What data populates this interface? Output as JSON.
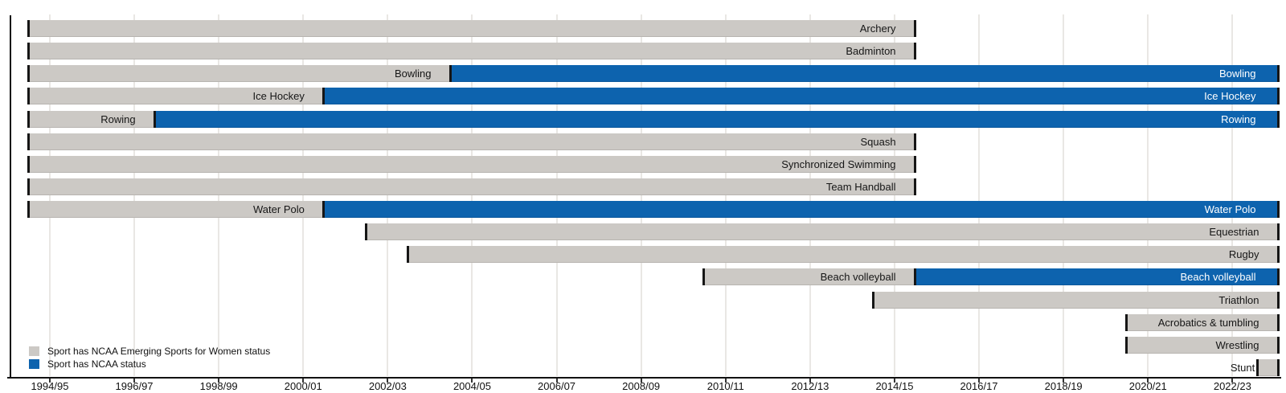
{
  "chart_data": {
    "type": "timeline",
    "description": "Timeline of NCAA Emerging Sports for Women and NCAA championship status by sport, 1994/95 to 2022/23",
    "x_axis": {
      "tick_labels": [
        "1994/95",
        "1996/97",
        "1998/99",
        "2000/01",
        "2002/03",
        "2004/05",
        "2006/07",
        "2008/09",
        "2010/11",
        "2012/13",
        "2014/15",
        "2016/17",
        "2018/19",
        "2020/21",
        "2022/23"
      ],
      "range_start_year": 1994.0,
      "range_end_year": 2023.6,
      "grid": true
    },
    "colors": {
      "emerging": "#ccc9c5",
      "ncaa": "#0d63ae",
      "cap": "#161616",
      "gridline": "#e9e7e4",
      "axis": "#121212",
      "label_dark": "#161616",
      "label_light": "#ffffff"
    },
    "legend": {
      "items": [
        {
          "key": "emerging",
          "label": "Sport has NCAA Emerging Sports for Women status",
          "color": "#ccc9c5"
        },
        {
          "key": "ncaa",
          "label": "Sport has NCAA status",
          "color": "#0d63ae"
        }
      ]
    },
    "sports": [
      {
        "name": "Archery",
        "segments": [
          {
            "status": "emerging",
            "from": 1994,
            "to": 2015
          }
        ]
      },
      {
        "name": "Badminton",
        "segments": [
          {
            "status": "emerging",
            "from": 1994,
            "to": 2015
          }
        ]
      },
      {
        "name": "Bowling",
        "segments": [
          {
            "status": "emerging",
            "from": 1994,
            "to": 2004
          },
          {
            "status": "ncaa",
            "from": 2004,
            "to": 2023.6
          }
        ]
      },
      {
        "name": "Ice Hockey",
        "segments": [
          {
            "status": "emerging",
            "from": 1994,
            "to": 2001
          },
          {
            "status": "ncaa",
            "from": 2001,
            "to": 2023.6
          }
        ]
      },
      {
        "name": "Rowing",
        "segments": [
          {
            "status": "emerging",
            "from": 1994,
            "to": 1997
          },
          {
            "status": "ncaa",
            "from": 1997,
            "to": 2023.6
          }
        ]
      },
      {
        "name": "Squash",
        "segments": [
          {
            "status": "emerging",
            "from": 1994,
            "to": 2015
          }
        ]
      },
      {
        "name": "Synchronized Swimming",
        "segments": [
          {
            "status": "emerging",
            "from": 1994,
            "to": 2015
          }
        ]
      },
      {
        "name": "Team Handball",
        "segments": [
          {
            "status": "emerging",
            "from": 1994,
            "to": 2015
          }
        ]
      },
      {
        "name": "Water Polo",
        "segments": [
          {
            "status": "emerging",
            "from": 1994,
            "to": 2001
          },
          {
            "status": "ncaa",
            "from": 2001,
            "to": 2023.6
          }
        ]
      },
      {
        "name": "Equestrian",
        "segments": [
          {
            "status": "emerging",
            "from": 2002,
            "to": 2023.6
          }
        ]
      },
      {
        "name": "Rugby",
        "segments": [
          {
            "status": "emerging",
            "from": 2003,
            "to": 2023.6
          }
        ]
      },
      {
        "name": "Beach volleyball",
        "segments": [
          {
            "status": "emerging",
            "from": 2010,
            "to": 2015
          },
          {
            "status": "ncaa",
            "from": 2015,
            "to": 2023.6
          }
        ]
      },
      {
        "name": "Triathlon",
        "segments": [
          {
            "status": "emerging",
            "from": 2014,
            "to": 2023.6
          }
        ]
      },
      {
        "name": "Acrobatics & tumbling",
        "segments": [
          {
            "status": "emerging",
            "from": 2020,
            "to": 2023.6
          }
        ]
      },
      {
        "name": "Wrestling",
        "segments": [
          {
            "status": "emerging",
            "from": 2020,
            "to": 2023.6
          }
        ]
      },
      {
        "name": "Stunt",
        "segments": [
          {
            "status": "emerging",
            "from": 2023.1,
            "to": 2023.6
          }
        ],
        "label_outside": true
      }
    ]
  }
}
